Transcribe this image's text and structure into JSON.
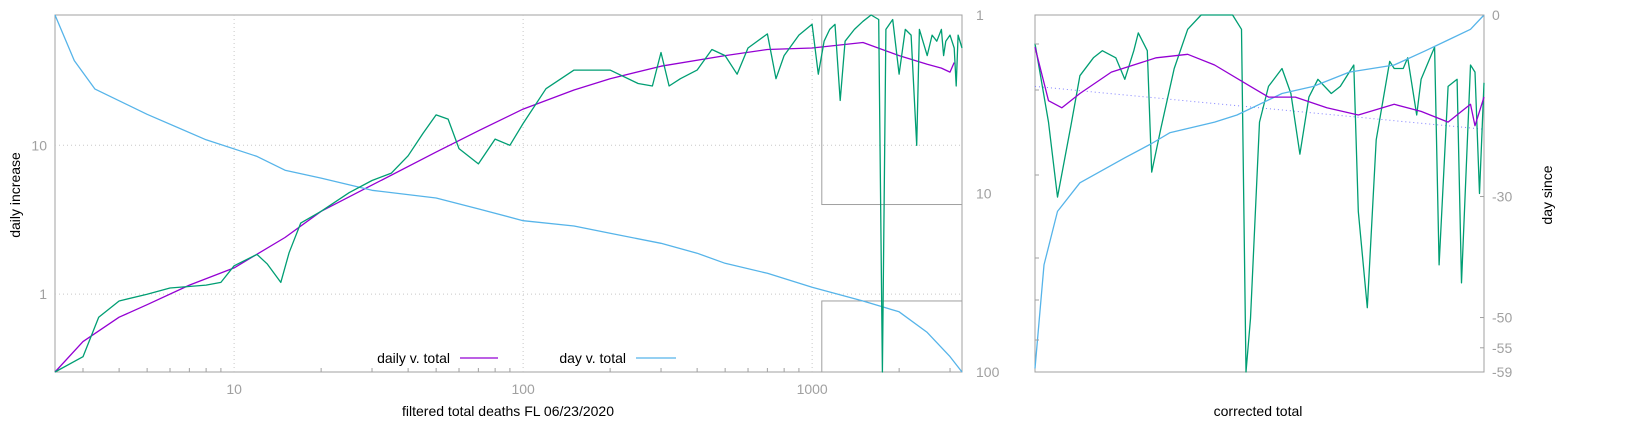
{
  "chart_data": [
    {
      "type": "line",
      "panel": "main",
      "xlabel": "filtered total deaths FL 06/23/2020",
      "ylabel": "daily increase",
      "x_scale": "log",
      "y_scale": "log",
      "xlim": [
        2.4,
        3300
      ],
      "ylim": [
        0.3,
        75
      ],
      "x_ticks": [
        {
          "v": 10,
          "label": "10"
        },
        {
          "v": 100,
          "label": "100"
        },
        {
          "v": 1000,
          "label": "1000"
        }
      ],
      "y_ticks": [
        {
          "v": 1,
          "label": "1"
        },
        {
          "v": 10,
          "label": "10"
        }
      ],
      "y2_axis": {
        "scale": "log-reversed",
        "lim": [
          1,
          100
        ],
        "ticks": [
          {
            "v": 1,
            "label": "1"
          },
          {
            "v": 10,
            "label": "10"
          },
          {
            "v": 100,
            "label": "100"
          }
        ]
      },
      "grid": true,
      "legend_position": "bottom-center",
      "colors": {
        "daily": "#9400d3",
        "day": "#56b4e9",
        "raw": "#009e73",
        "frame": "#a0a0a0",
        "grid": "#c8c8c8"
      },
      "series": [
        {
          "key": "daily",
          "name": "daily v. total",
          "axis": "left",
          "points": [
            [
              2.4,
              0.3
            ],
            [
              3,
              0.48
            ],
            [
              4,
              0.7
            ],
            [
              5,
              0.85
            ],
            [
              7,
              1.15
            ],
            [
              10,
              1.5
            ],
            [
              15,
              2.4
            ],
            [
              20,
              3.6
            ],
            [
              30,
              5.4
            ],
            [
              50,
              9.0
            ],
            [
              70,
              12.5
            ],
            [
              100,
              17.5
            ],
            [
              150,
              23.5
            ],
            [
              200,
              28
            ],
            [
              300,
              34
            ],
            [
              500,
              40
            ],
            [
              700,
              44
            ],
            [
              1000,
              45
            ],
            [
              1500,
              49
            ],
            [
              2000,
              40
            ],
            [
              2500,
              35
            ],
            [
              2800,
              33
            ],
            [
              3000,
              31
            ],
            [
              3100,
              36
            ]
          ]
        },
        {
          "key": "day",
          "name": "day v. total",
          "axis": "right",
          "points": [
            [
              2.4,
              1
            ],
            [
              2.8,
              1.8
            ],
            [
              3.3,
              2.6
            ],
            [
              5,
              3.6
            ],
            [
              8,
              5
            ],
            [
              12,
              6.2
            ],
            [
              15,
              7.4
            ],
            [
              20,
              8.2
            ],
            [
              30,
              9.6
            ],
            [
              50,
              10.6
            ],
            [
              70,
              12.2
            ],
            [
              100,
              14.2
            ],
            [
              150,
              15.2
            ],
            [
              200,
              16.7
            ],
            [
              300,
              19
            ],
            [
              400,
              21.6
            ],
            [
              500,
              24.6
            ],
            [
              700,
              28
            ],
            [
              1000,
              33.5
            ],
            [
              1500,
              40
            ],
            [
              2000,
              46
            ],
            [
              2500,
              60
            ],
            [
              3000,
              82
            ],
            [
              3300,
              100
            ]
          ]
        },
        {
          "key": "raw",
          "name": "",
          "axis": "left",
          "points": [
            [
              2.4,
              0.28
            ],
            [
              3,
              0.38
            ],
            [
              3.4,
              0.7
            ],
            [
              4,
              0.9
            ],
            [
              5,
              1.0
            ],
            [
              6,
              1.1
            ],
            [
              8,
              1.15
            ],
            [
              9,
              1.2
            ],
            [
              10,
              1.55
            ],
            [
              12,
              1.85
            ],
            [
              13,
              1.6
            ],
            [
              14.5,
              1.2
            ],
            [
              15.5,
              1.9
            ],
            [
              17,
              3.0
            ],
            [
              20,
              3.6
            ],
            [
              25,
              4.8
            ],
            [
              30,
              5.8
            ],
            [
              35,
              6.5
            ],
            [
              40,
              8.5
            ],
            [
              45,
              12
            ],
            [
              50,
              16
            ],
            [
              55,
              15
            ],
            [
              60,
              9.5
            ],
            [
              70,
              7.5
            ],
            [
              80,
              11
            ],
            [
              90,
              10
            ],
            [
              100,
              14
            ],
            [
              120,
              24
            ],
            [
              150,
              32
            ],
            [
              200,
              32
            ],
            [
              250,
              26
            ],
            [
              280,
              25
            ],
            [
              300,
              42
            ],
            [
              320,
              25
            ],
            [
              350,
              28
            ],
            [
              400,
              32
            ],
            [
              450,
              44
            ],
            [
              500,
              40
            ],
            [
              550,
              30
            ],
            [
              600,
              45
            ],
            [
              700,
              56
            ],
            [
              750,
              28
            ],
            [
              800,
              40
            ],
            [
              900,
              55
            ],
            [
              1000,
              65
            ],
            [
              1050,
              30
            ],
            [
              1100,
              50
            ],
            [
              1150,
              60
            ],
            [
              1200,
              65
            ],
            [
              1250,
              20
            ],
            [
              1300,
              50
            ],
            [
              1400,
              60
            ],
            [
              1500,
              68
            ],
            [
              1600,
              75
            ],
            [
              1700,
              70
            ],
            [
              1750,
              0.3
            ],
            [
              1800,
              60
            ],
            [
              1900,
              70
            ],
            [
              2000,
              30
            ],
            [
              2100,
              60
            ],
            [
              2200,
              55
            ],
            [
              2300,
              10
            ],
            [
              2350,
              60
            ],
            [
              2500,
              40
            ],
            [
              2600,
              55
            ],
            [
              2700,
              50
            ],
            [
              2800,
              60
            ],
            [
              2850,
              40
            ],
            [
              2900,
              50
            ],
            [
              3000,
              55
            ],
            [
              3100,
              45
            ],
            [
              3150,
              25
            ],
            [
              3200,
              55
            ],
            [
              3300,
              45
            ]
          ]
        }
      ],
      "inset_rect": {
        "x": [
          1080,
          3300
        ],
        "y_top": 75,
        "y_bottom": 4.0
      },
      "inset_rect2": {
        "x": [
          1080,
          3300
        ],
        "y_top": 0.9,
        "y_bottom": 0.3
      }
    },
    {
      "type": "line",
      "panel": "right",
      "xlabel": "corrected total",
      "ylabel": "day since",
      "right_ticks": [
        {
          "v": 0,
          "label": "0"
        },
        {
          "v": -30,
          "label": "-30"
        },
        {
          "v": -50,
          "label": "-50"
        },
        {
          "v": -55,
          "label": "-55"
        },
        {
          "v": -59,
          "label": "-59"
        }
      ],
      "series_desc": "zoomed inset of 1000-3300 region",
      "colors": {
        "daily": "#9400d3",
        "day": "#56b4e9",
        "raw": "#009e73",
        "dotted": "#8080ff"
      }
    }
  ],
  "legend": [
    {
      "key": "daily",
      "label": "daily v. total",
      "color": "#9400d3"
    },
    {
      "key": "day",
      "label": "day v. total",
      "color": "#56b4e9"
    }
  ]
}
